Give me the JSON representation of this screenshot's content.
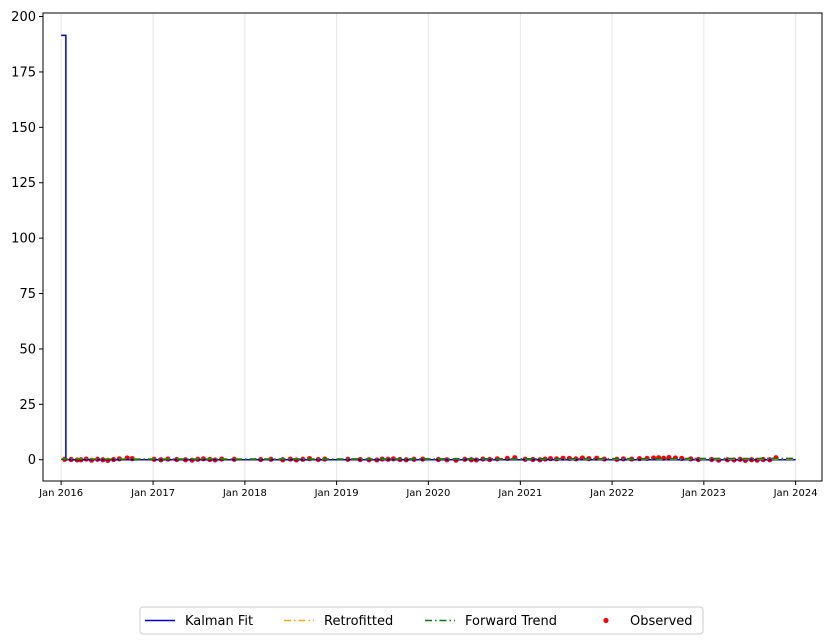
{
  "chart_data": {
    "type": "line",
    "x_type": "date",
    "xlim": [
      "2015-10-21",
      "2024-04-15"
    ],
    "ylim": [
      -9.6,
      201.6
    ],
    "x_ticks": [
      "2016-01-01",
      "2017-01-01",
      "2018-01-01",
      "2019-01-01",
      "2020-01-01",
      "2021-01-01",
      "2022-01-01",
      "2023-01-01",
      "2024-01-01"
    ],
    "x_tick_labels": [
      "Jan 2016",
      "Jan 2017",
      "Jan 2018",
      "Jan 2019",
      "Jan 2020",
      "Jan 2021",
      "Jan 2022",
      "Jan 2023",
      "Jan 2024"
    ],
    "y_ticks": [
      0,
      25,
      50,
      75,
      100,
      125,
      150,
      175,
      200
    ],
    "y_tick_labels": [
      "0",
      "25",
      "50",
      "75",
      "100",
      "125",
      "150",
      "175",
      "200"
    ],
    "grid": "vertical lines at x ticks",
    "legend_position": "below plot, centered, single row",
    "series": [
      {
        "name": "Kalman Fit",
        "color": "#0000cc",
        "style": "solid step",
        "points": [
          [
            "2016-01-01",
            191.5
          ],
          [
            "2016-01-20",
            191.5
          ],
          [
            "2016-01-20",
            0
          ],
          [
            "2024-01-01",
            0
          ]
        ]
      },
      {
        "name": "Retrofitted",
        "color": "#ffa500",
        "style": "dash-dot",
        "points": [
          [
            "2016-01-01",
            0.3
          ],
          [
            "2024-01-01",
            0.3
          ]
        ]
      },
      {
        "name": "Forward Trend",
        "color": "#007f00",
        "style": "dash-dot",
        "points": [
          [
            "2016-01-01",
            0.2
          ],
          [
            "2024-01-01",
            0.6
          ]
        ]
      },
      {
        "name": "Observed",
        "color": "#ff0000",
        "style": "scatter",
        "points": [
          [
            "2016-01-15",
            0.2
          ],
          [
            "2016-02-10",
            0.1
          ],
          [
            "2016-03-05",
            -0.1
          ],
          [
            "2016-03-20",
            0.0
          ],
          [
            "2016-04-10",
            0.3
          ],
          [
            "2016-05-01",
            -0.2
          ],
          [
            "2016-05-25",
            0.2
          ],
          [
            "2016-06-15",
            0.0
          ],
          [
            "2016-07-05",
            -0.3
          ],
          [
            "2016-07-28",
            0.1
          ],
          [
            "2016-08-20",
            0.4
          ],
          [
            "2016-09-20",
            0.8
          ],
          [
            "2016-10-10",
            0.5
          ],
          [
            "2017-01-05",
            0.2
          ],
          [
            "2017-02-01",
            0.0
          ],
          [
            "2017-03-01",
            0.3
          ],
          [
            "2017-04-05",
            0.1
          ],
          [
            "2017-05-10",
            0.0
          ],
          [
            "2017-06-05",
            -0.2
          ],
          [
            "2017-06-28",
            0.2
          ],
          [
            "2017-07-20",
            0.4
          ],
          [
            "2017-08-15",
            0.1
          ],
          [
            "2017-09-05",
            -0.1
          ],
          [
            "2017-10-01",
            0.3
          ],
          [
            "2017-11-20",
            0.2
          ],
          [
            "2018-03-05",
            0.1
          ],
          [
            "2018-04-15",
            0.2
          ],
          [
            "2018-06-01",
            0.0
          ],
          [
            "2018-07-01",
            0.3
          ],
          [
            "2018-07-25",
            -0.1
          ],
          [
            "2018-08-20",
            0.2
          ],
          [
            "2018-09-15",
            0.5
          ],
          [
            "2018-10-20",
            0.1
          ],
          [
            "2018-11-15",
            0.3
          ],
          [
            "2019-02-15",
            0.2
          ],
          [
            "2019-04-05",
            0.1
          ],
          [
            "2019-05-10",
            0.0
          ],
          [
            "2019-06-10",
            -0.1
          ],
          [
            "2019-07-01",
            0.3
          ],
          [
            "2019-07-25",
            0.2
          ],
          [
            "2019-08-15",
            0.4
          ],
          [
            "2019-09-10",
            0.1
          ],
          [
            "2019-10-05",
            0.0
          ],
          [
            "2019-11-05",
            0.2
          ],
          [
            "2019-12-10",
            0.3
          ],
          [
            "2020-02-10",
            0.1
          ],
          [
            "2020-03-15",
            0.0
          ],
          [
            "2020-04-20",
            -0.2
          ],
          [
            "2020-05-25",
            0.2
          ],
          [
            "2020-06-20",
            0.0
          ],
          [
            "2020-07-10",
            -0.1
          ],
          [
            "2020-08-05",
            0.3
          ],
          [
            "2020-09-01",
            0.1
          ],
          [
            "2020-10-01",
            0.4
          ],
          [
            "2020-11-10",
            0.6
          ],
          [
            "2020-12-10",
            0.9
          ],
          [
            "2021-01-20",
            0.2
          ],
          [
            "2021-02-20",
            0.1
          ],
          [
            "2021-03-20",
            0.0
          ],
          [
            "2021-04-10",
            0.3
          ],
          [
            "2021-05-01",
            0.5
          ],
          [
            "2021-05-25",
            0.4
          ],
          [
            "2021-06-20",
            0.7
          ],
          [
            "2021-07-15",
            0.6
          ],
          [
            "2021-08-10",
            0.4
          ],
          [
            "2021-09-05",
            0.8
          ],
          [
            "2021-10-01",
            0.5
          ],
          [
            "2021-11-01",
            0.7
          ],
          [
            "2021-12-01",
            0.3
          ],
          [
            "2022-01-20",
            0.2
          ],
          [
            "2022-02-15",
            0.4
          ],
          [
            "2022-03-20",
            0.3
          ],
          [
            "2022-04-20",
            0.5
          ],
          [
            "2022-05-20",
            0.6
          ],
          [
            "2022-06-15",
            0.8
          ],
          [
            "2022-07-05",
            0.9
          ],
          [
            "2022-07-25",
            0.7
          ],
          [
            "2022-08-15",
            1.0
          ],
          [
            "2022-09-10",
            0.8
          ],
          [
            "2022-10-05",
            0.6
          ],
          [
            "2022-11-10",
            0.4
          ],
          [
            "2022-12-10",
            0.1
          ],
          [
            "2023-02-01",
            0.1
          ],
          [
            "2023-03-01",
            -0.2
          ],
          [
            "2023-04-05",
            0.0
          ],
          [
            "2023-05-01",
            -0.1
          ],
          [
            "2023-05-25",
            0.2
          ],
          [
            "2023-06-15",
            -0.3
          ],
          [
            "2023-07-10",
            0.0
          ],
          [
            "2023-08-01",
            -0.2
          ],
          [
            "2023-08-25",
            0.1
          ],
          [
            "2023-09-20",
            0.0
          ],
          [
            "2023-10-15",
            0.9
          ]
        ]
      }
    ]
  }
}
